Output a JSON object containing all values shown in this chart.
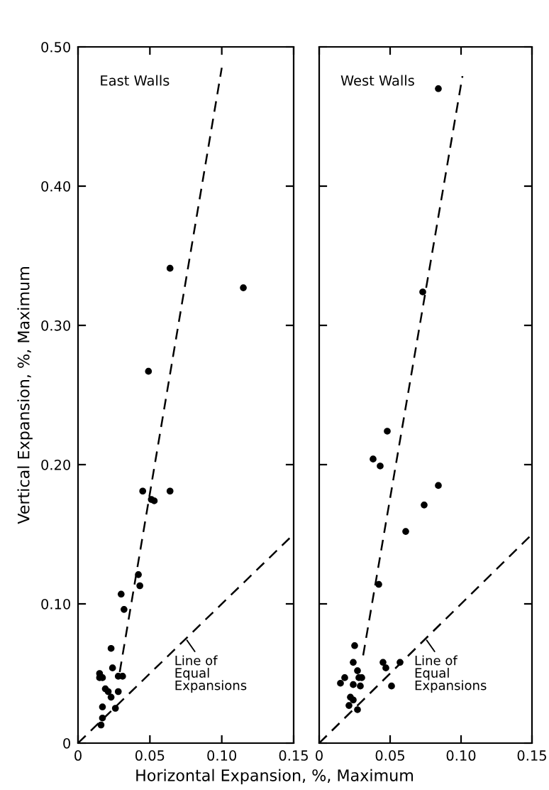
{
  "chart_data": [
    {
      "type": "scatter",
      "ylabel": "Vertical Expansion, %, Maximum",
      "xlabel": "Horizontal Expansion, %, Maximum",
      "annotations": [
        "East Walls",
        {
          "text": "Line of\nEqual\nExpansions",
          "x": 0.075,
          "y": 0.075
        }
      ],
      "xlim": [
        0,
        0.15
      ],
      "ylim": [
        0,
        0.5
      ],
      "xticks": [
        0,
        0.05,
        {
          "value": 0.1,
          "label": "0.10"
        },
        0.15
      ],
      "yticks": [
        0,
        {
          "value": 0.1,
          "label": "0.10"
        },
        {
          "value": 0.2,
          "label": "0.20"
        },
        {
          "value": 0.3,
          "label": "0.30"
        },
        {
          "value": 0.4,
          "label": "0.40"
        },
        {
          "value": 0.5,
          "label": "0.50"
        }
      ],
      "grid": false,
      "legend": false,
      "marker": "circle",
      "series": [
        {
          "color": "#000000",
          "x": [
            0.064,
            0.115,
            0.049,
            0.045,
            0.064,
            0.051,
            0.053,
            0.042,
            0.043,
            0.03,
            0.032,
            0.023,
            0.024,
            0.015,
            0.015,
            0.017,
            0.028,
            0.031,
            0.019,
            0.021,
            0.023,
            0.028,
            0.017,
            0.026,
            0.017,
            0.016
          ],
          "values": [
            0.341,
            0.327,
            0.267,
            0.181,
            0.181,
            0.175,
            0.174,
            0.121,
            0.113,
            0.107,
            0.096,
            0.068,
            0.054,
            0.05,
            0.047,
            0.047,
            0.048,
            0.048,
            0.039,
            0.037,
            0.033,
            0.037,
            0.026,
            0.025,
            0.018,
            0.013
          ]
        },
        {
          "type": "line",
          "color": "#000000",
          "line_style": "dashed",
          "marker": "none",
          "x": [
            0.029,
            0.1
          ],
          "values": [
            0.051,
            0.485
          ]
        },
        {
          "type": "line",
          "color": "#000000",
          "line_style": "dashed",
          "marker": "none",
          "x": [
            0,
            0.15
          ],
          "values": [
            0,
            0.15
          ]
        }
      ]
    },
    {
      "type": "scatter",
      "annotations": [
        "West Walls",
        {
          "text": "Line of\nEqual\nExpansions",
          "x": 0.075,
          "y": 0.075
        }
      ],
      "xlim": [
        0,
        0.15
      ],
      "ylim": [
        0,
        0.5
      ],
      "xticks": [
        0,
        0.05,
        {
          "value": 0.1,
          "label": "0.10"
        },
        0.15
      ],
      "yticks": [
        {
          "value": 0,
          "label": null
        },
        {
          "value": 0.1,
          "label": null
        },
        {
          "value": 0.2,
          "label": null
        },
        {
          "value": 0.3,
          "label": null
        },
        {
          "value": 0.4,
          "label": null
        },
        {
          "value": 0.5,
          "label": null
        }
      ],
      "tick_labels": "x",
      "grid": false,
      "legend": false,
      "marker": "circle",
      "series": [
        {
          "color": "#000000",
          "x": [
            0.084,
            0.073,
            0.048,
            0.038,
            0.043,
            0.084,
            0.074,
            0.061,
            0.042,
            0.025,
            0.024,
            0.045,
            0.047,
            0.057,
            0.018,
            0.015,
            0.027,
            0.028,
            0.03,
            0.024,
            0.029,
            0.051,
            0.022,
            0.024,
            0.021,
            0.027
          ],
          "values": [
            0.47,
            0.324,
            0.224,
            0.204,
            0.199,
            0.185,
            0.171,
            0.152,
            0.114,
            0.07,
            0.058,
            0.058,
            0.054,
            0.058,
            0.047,
            0.043,
            0.052,
            0.047,
            0.047,
            0.042,
            0.041,
            0.041,
            0.033,
            0.031,
            0.027,
            0.024
          ]
        },
        {
          "type": "line",
          "color": "#000000",
          "line_style": "dashed",
          "marker": "none",
          "x": [
            0.031,
            0.101
          ],
          "values": [
            0.063,
            0.479
          ]
        },
        {
          "type": "line",
          "color": "#000000",
          "line_style": "dashed",
          "marker": "none",
          "x": [
            0,
            0.15
          ],
          "values": [
            0,
            0.15
          ]
        }
      ]
    }
  ]
}
